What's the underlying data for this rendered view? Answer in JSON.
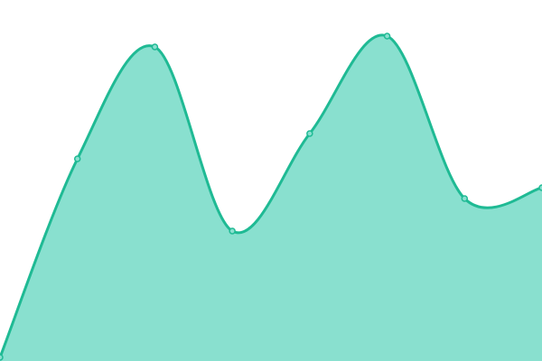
{
  "chart_data": {
    "type": "area",
    "x": [
      0,
      1,
      2,
      3,
      4,
      5,
      6,
      7
    ],
    "values": [
      1,
      56,
      87,
      36,
      63,
      90,
      45,
      48
    ],
    "ylim": [
      0,
      100
    ],
    "grid": false,
    "smooth": true,
    "colors": {
      "line": "#1fba94",
      "fill": "#89e0cf",
      "point": "#89e0cf"
    }
  }
}
